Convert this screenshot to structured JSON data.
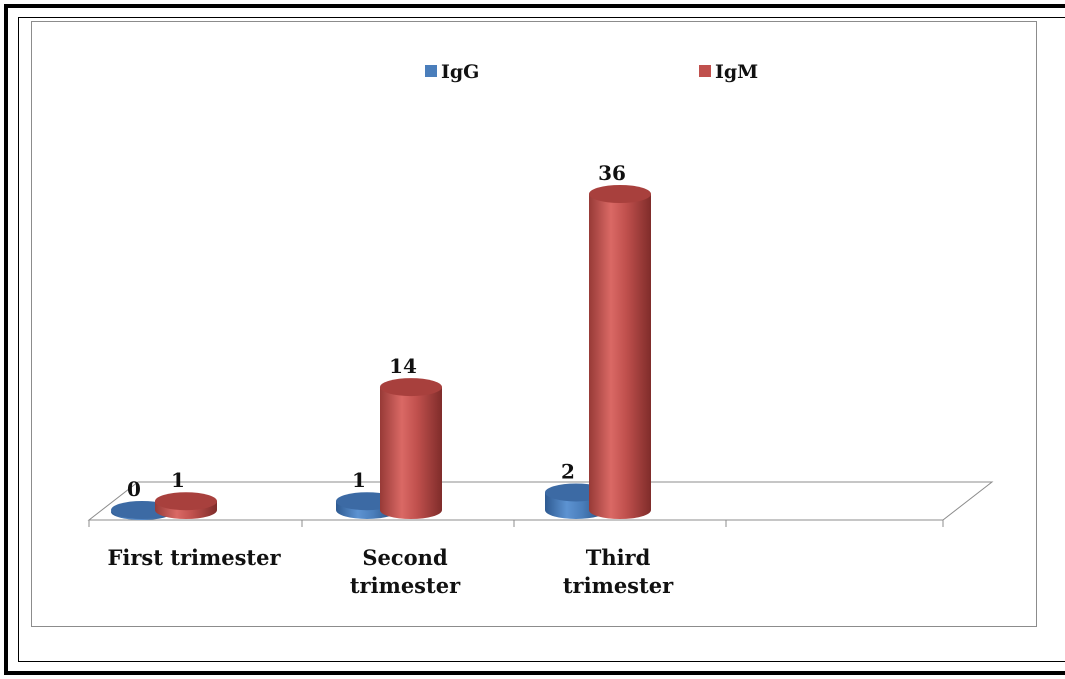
{
  "chart_data": {
    "type": "bar",
    "categories": [
      "First trimester",
      "Second trimester",
      "Third trimester"
    ],
    "category_lines": [
      [
        "First trimester"
      ],
      [
        "Second",
        "trimester"
      ],
      [
        "Third",
        "trimester"
      ]
    ],
    "series": [
      {
        "name": "IgG",
        "values": [
          0,
          1,
          2
        ],
        "color": "#4a7ebb"
      },
      {
        "name": "IgM",
        "values": [
          1,
          14,
          36
        ],
        "color": "#c0504d"
      }
    ],
    "ylim": [
      0,
      36
    ],
    "legend": "top",
    "grid": false,
    "style": "3d-cylinder"
  }
}
